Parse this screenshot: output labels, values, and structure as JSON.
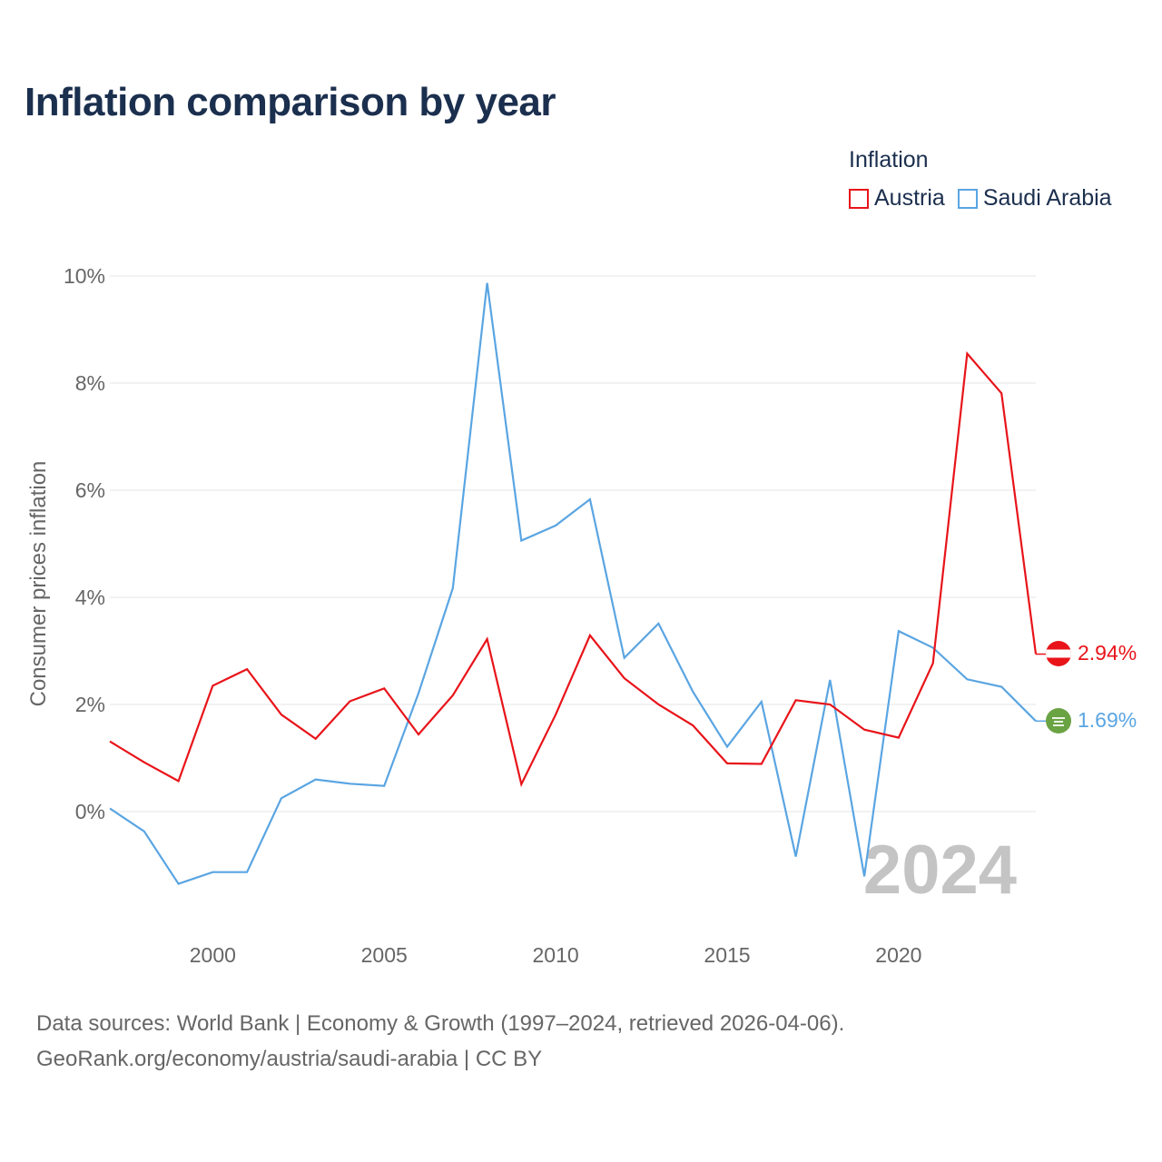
{
  "title": "Inflation comparison by year",
  "legend": {
    "title": "Inflation",
    "items": [
      {
        "label": "Austria",
        "color": "#e8141a"
      },
      {
        "label": "Saudi Arabia",
        "color": "#5aa5e2"
      }
    ]
  },
  "year_watermark": "2024",
  "source": {
    "line1": "Data sources: World Bank | Economy & Growth (1997–2024, retrieved 2026-04-06).",
    "line2": "GeoRank.org/economy/austria/saudi-arabia | CC BY"
  },
  "end_labels": {
    "austria": {
      "text": "2.94%",
      "color": "#e8141a",
      "icon": "austria-flag-icon"
    },
    "saudi": {
      "text": "1.69%",
      "color": "#5aa5e2",
      "icon": "saudi-flag-icon"
    }
  },
  "chart_data": {
    "type": "line",
    "title": "Inflation comparison by year",
    "xlabel": "",
    "ylabel": "Consumer prices inflation",
    "xlim": [
      1997,
      2024
    ],
    "ylim": [
      -2,
      10
    ],
    "x_ticks": [
      2000,
      2005,
      2010,
      2015,
      2020
    ],
    "y_ticks": [
      0,
      2,
      4,
      6,
      8,
      10
    ],
    "y_tick_labels": [
      "0%",
      "2%",
      "4%",
      "6%",
      "8%",
      "10%"
    ],
    "grid": true,
    "legend_position": "top-right",
    "x": [
      1997,
      1998,
      1999,
      2000,
      2001,
      2002,
      2003,
      2004,
      2005,
      2006,
      2007,
      2008,
      2009,
      2010,
      2011,
      2012,
      2013,
      2014,
      2015,
      2016,
      2017,
      2018,
      2019,
      2020,
      2021,
      2022,
      2023,
      2024
    ],
    "series": [
      {
        "name": "Austria",
        "color": "#e8141a",
        "values": [
          1.31,
          0.92,
          0.57,
          2.35,
          2.66,
          1.81,
          1.36,
          2.06,
          2.3,
          1.44,
          2.17,
          3.22,
          0.51,
          1.81,
          3.29,
          2.49,
          2.0,
          1.61,
          0.9,
          0.89,
          2.08,
          2.0,
          1.53,
          1.38,
          2.77,
          8.55,
          7.81,
          2.94
        ]
      },
      {
        "name": "Saudi Arabia",
        "color": "#5aa5e2",
        "values": [
          0.06,
          -0.37,
          -1.35,
          -1.13,
          -1.13,
          0.25,
          0.6,
          0.52,
          0.48,
          2.21,
          4.17,
          9.87,
          5.06,
          5.34,
          5.83,
          2.87,
          3.51,
          2.24,
          1.21,
          2.05,
          -0.84,
          2.46,
          -1.21,
          3.37,
          3.06,
          2.47,
          2.33,
          1.69
        ]
      }
    ]
  }
}
